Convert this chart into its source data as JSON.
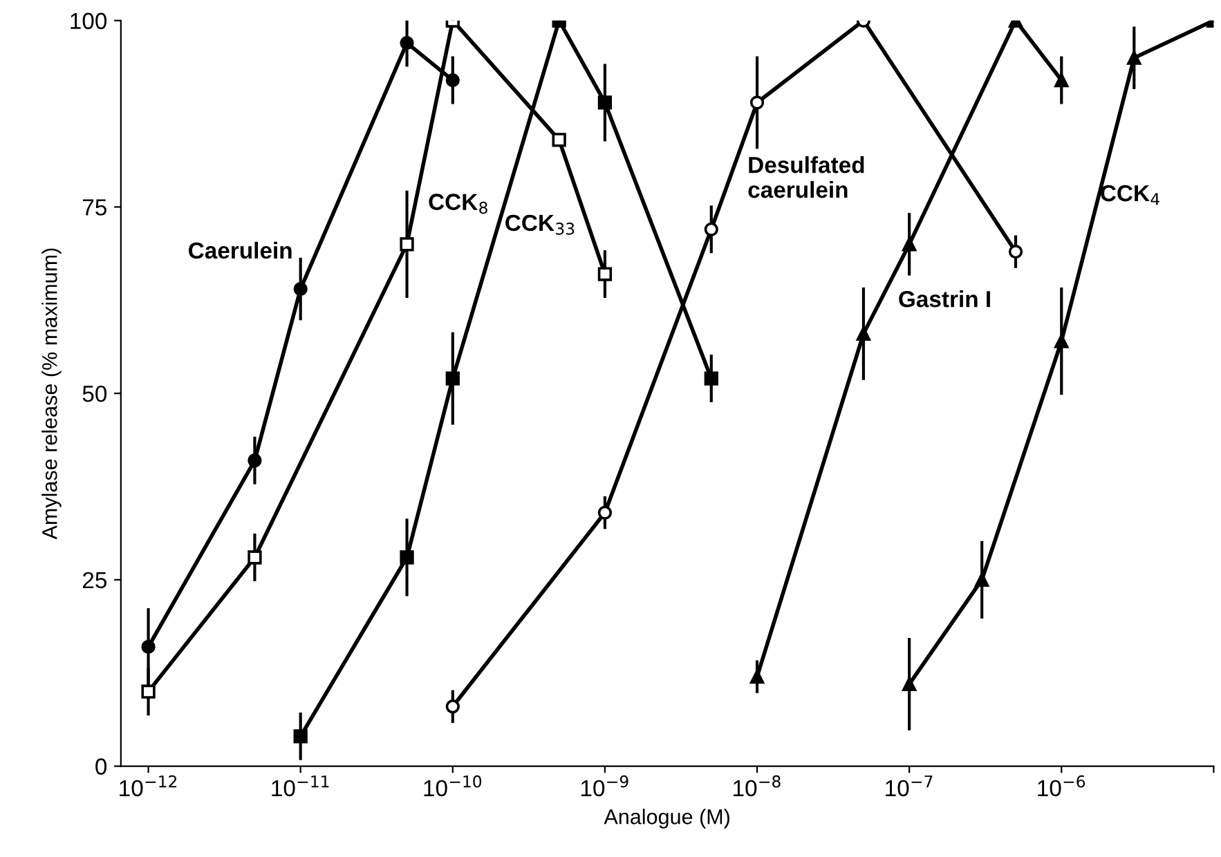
{
  "chart_data": {
    "type": "line",
    "xlabel": "Analogue (M)",
    "ylabel": "Amylase release (% maximum)",
    "log": "x",
    "xlim": [
      6.6e-13,
      1e-05
    ],
    "xticks": [
      {
        "value": 1e-12,
        "label": "10$^{−12}$"
      },
      {
        "value": 1e-11,
        "label": "10$^{−11}$"
      },
      {
        "value": 1e-10,
        "label": "10$^{−10}$"
      },
      {
        "value": 1e-09,
        "label": "10$^{−9}$"
      },
      {
        "value": 1e-08,
        "label": "10$^{−8}$"
      },
      {
        "value": 1e-07,
        "label": "10$^{−7}$"
      },
      {
        "value": 1e-06,
        "label": "10$^{−6}$"
      },
      {
        "value": 1e-05,
        "label": null
      }
    ],
    "ylim": [
      0,
      100
    ],
    "yticks": [
      0,
      25,
      50,
      75,
      100
    ],
    "grid": false,
    "legend": false,
    "line_style": "solid",
    "series": [
      {
        "name": "Caerulein",
        "color": "#000000",
        "marker": "circle",
        "x": [
          1e-12,
          5e-12,
          1e-11,
          5e-11,
          1e-10
        ],
        "values": [
          16,
          41,
          64,
          97,
          92
        ],
        "errors": [
          5,
          3,
          4,
          3,
          3
        ]
      },
      {
        "name": "CCK$_{8}$",
        "color": "#000000",
        "marker": "square",
        "x": [
          1e-12,
          5e-12,
          5e-11,
          1e-10,
          5e-10,
          1e-09
        ],
        "values": [
          10,
          28,
          70,
          100,
          84,
          66
        ],
        "errors": [
          3,
          3,
          7,
          null,
          null,
          3
        ]
      },
      {
        "name": "CCK$_{33}$",
        "color": "#000000",
        "marker": "square",
        "x": [
          1e-11,
          5e-11,
          1e-10,
          5e-10,
          1e-09,
          5e-09
        ],
        "values": [
          4,
          28,
          52,
          100,
          89,
          52
        ],
        "errors": [
          3,
          5,
          6,
          null,
          5,
          3
        ]
      },
      {
        "name": "Desulfated\ncaerulein",
        "color": "#000000",
        "marker": "circle",
        "x": [
          1e-10,
          1e-09,
          5e-09,
          1e-08,
          5e-08,
          5e-07
        ],
        "values": [
          8,
          34,
          72,
          89,
          100,
          69
        ],
        "errors": [
          2,
          2,
          3,
          6,
          null,
          2
        ]
      },
      {
        "name": "Gastrin I",
        "color": "#000000",
        "marker": "triangle",
        "x": [
          1e-08,
          5e-08,
          1e-07,
          5e-07,
          1e-06
        ],
        "values": [
          12,
          58,
          70,
          100,
          92
        ],
        "errors": [
          2,
          6,
          4,
          null,
          3
        ]
      },
      {
        "name": "CCK$_{4}$",
        "color": "#000000",
        "marker": "triangle",
        "x": [
          1e-07,
          3e-07,
          1e-06,
          3e-06,
          1e-05
        ],
        "values": [
          11,
          25,
          57,
          95,
          100
        ],
        "errors": [
          6,
          5,
          7,
          4,
          null
        ]
      }
    ]
  }
}
